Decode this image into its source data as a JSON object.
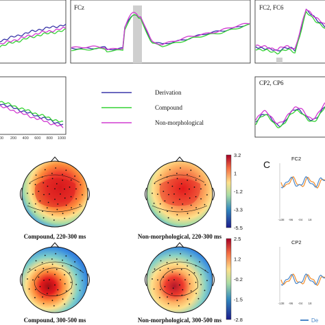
{
  "chart_data": [
    {
      "type": "line",
      "panel": "ERP waveforms",
      "legend": {
        "placement": "center",
        "entries": [
          {
            "name": "Derivation",
            "color": "#3a36a8"
          },
          {
            "name": "Compound",
            "color": "#33d233"
          },
          {
            "name": "Non-morphological",
            "color": "#d13ad1"
          }
        ]
      },
      "channels": [
        {
          "label": ""
        },
        {
          "label": "FCz"
        },
        {
          "label": "FC2, FC6"
        },
        {
          "label": ""
        },
        {
          "label": "CP2, CP6"
        }
      ],
      "x_tick_labels": [
        "00",
        "200",
        "400",
        "600",
        "800",
        "1000"
      ]
    },
    {
      "type": "heatmap",
      "panel": "Scalp topography",
      "maps": [
        {
          "caption": "Compound, 220-300 ms"
        },
        {
          "caption": "Non-morphological, 220-300 ms"
        },
        {
          "caption": "Compound, 300-500 ms"
        },
        {
          "caption": "Non-morphological, 300-500 ms"
        }
      ],
      "colorbars": [
        {
          "ticks": [
            "3.2",
            "1",
            "-1.2",
            "-3.3",
            "-5.5"
          ],
          "range": [
            -5.5,
            3.2
          ]
        },
        {
          "ticks": [
            "2.5",
            "1.2",
            "-0.2",
            "-1.5",
            "-2.8"
          ],
          "range": [
            -2.8,
            2.5
          ]
        }
      ]
    },
    {
      "type": "line",
      "panel": "C",
      "panel_label": "C",
      "channels": [
        {
          "label": "FC2"
        },
        {
          "label": "CP2"
        }
      ],
      "series_colors": [
        "#f28c28",
        "#4a86c8"
      ],
      "x_tick_labels": [
        "-138",
        "-96",
        "-04",
        "18"
      ],
      "legend_fragment": "De"
    }
  ]
}
